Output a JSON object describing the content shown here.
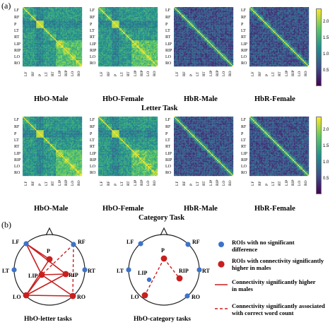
{
  "panel_a_label": "(a)",
  "panel_b_label": "(b)",
  "roi_y_labels": [
    "LF",
    "RF",
    "P",
    "LT",
    "RT",
    "LIP",
    "RIP",
    "LO",
    "RO"
  ],
  "roi_x_labels": [
    "LF",
    "RF",
    "P",
    "LT",
    "RT",
    "LIP",
    "RIP",
    "LO",
    "RO"
  ],
  "colorbar": {
    "ticks": [
      "2.0",
      "1.5",
      "1.0",
      "0.5"
    ],
    "colors": [
      "#440154",
      "#3b528b",
      "#21908d",
      "#5dc963",
      "#fde725"
    ]
  },
  "letter_task": {
    "title": "Letter Task",
    "matrices": [
      "HbO-Male",
      "HbO-Female",
      "HbR-Male",
      "HbR-Female"
    ]
  },
  "category_task": {
    "title": "Category Task",
    "matrices": [
      "HbO-Male",
      "HbO-Female",
      "HbR-Male",
      "HbR-Female"
    ]
  },
  "diagram_letter": {
    "title": "HbO-letter tasks",
    "rois": [
      "LF",
      "RF",
      "P",
      "LT",
      "RT",
      "LIP",
      "RIP",
      "LO",
      "RO"
    ]
  },
  "diagram_category": {
    "title": "HbO-category tasks",
    "rois": [
      "LF",
      "RF",
      "P",
      "LT",
      "RT",
      "LIP",
      "RIP",
      "LO",
      "RO"
    ]
  },
  "legend": {
    "blue_dot": "ROIs with no significant difference",
    "red_dot": "ROIs with connectivity significantly higher in males",
    "solid_line": "Connectivity significantly higher in males",
    "dashed_line": "Connectivity significantly associated with correct word count"
  }
}
